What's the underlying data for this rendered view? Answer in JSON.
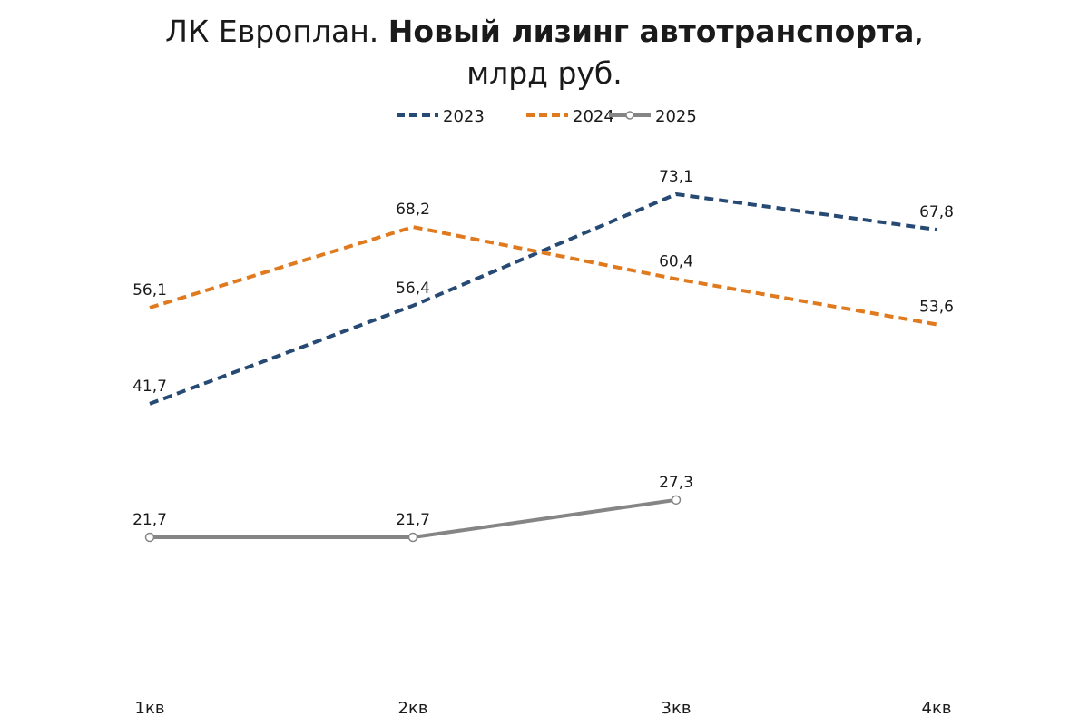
{
  "chart_data": {
    "type": "line",
    "title": {
      "prefix": "ЛК Европлан. ",
      "bold": "Новый лизинг автотранспорта",
      "suffix": ", млрд руб."
    },
    "categories": [
      "1кв",
      "2кв",
      "3кв",
      "4кв"
    ],
    "series": [
      {
        "name": "2023",
        "values": [
          41.7,
          56.4,
          73.1,
          67.8
        ],
        "labels": [
          "41,7",
          "56,4",
          "73,1",
          "67,8"
        ],
        "color": "#264a73",
        "style": "dashed",
        "markers": false
      },
      {
        "name": "2024",
        "values": [
          56.1,
          68.2,
          60.4,
          53.6
        ],
        "labels": [
          "56,1",
          "68,2",
          "60,4",
          "53,6"
        ],
        "color": "#e07a1f",
        "style": "dashed",
        "markers": false
      },
      {
        "name": "2025",
        "values": [
          21.7,
          21.7,
          27.3,
          null
        ],
        "labels": [
          "21,7",
          "21,7",
          "27,3",
          null
        ],
        "color": "#858585",
        "style": "solid",
        "markers": true
      }
    ],
    "ylim": [
      0,
      100
    ],
    "grid": false,
    "legend": "top-center"
  }
}
